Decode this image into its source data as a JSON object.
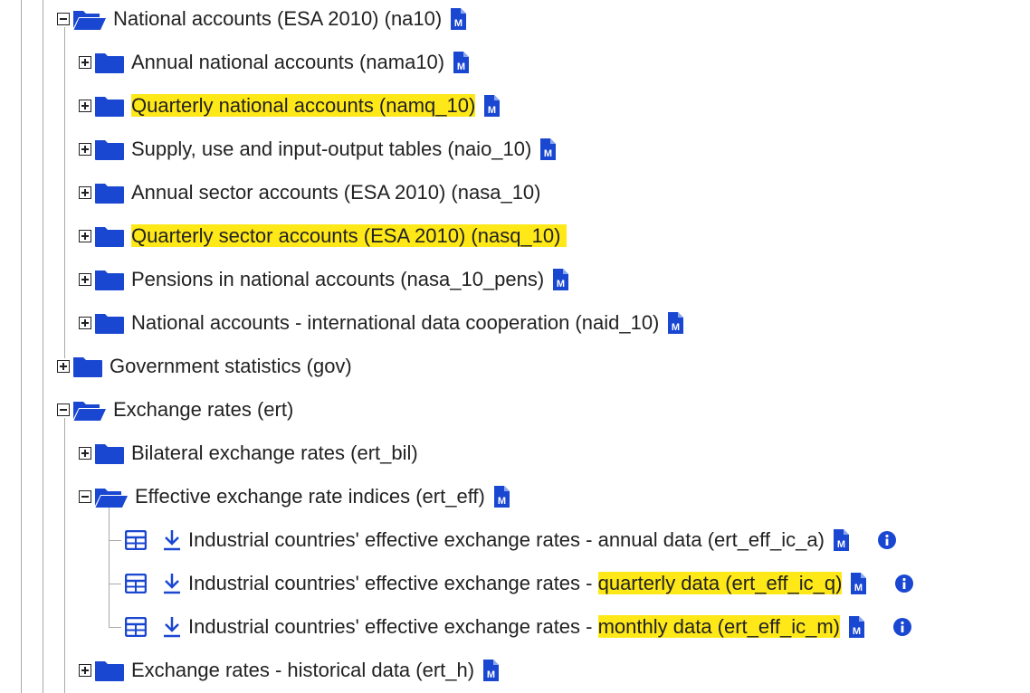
{
  "tree": {
    "nodes": [
      {
        "id": "na10",
        "prefix": "National accounts (ESA 2010) (na10)",
        "highlight": "",
        "suffix": "",
        "expanded": true,
        "meta": true
      },
      {
        "id": "nama10",
        "prefix": "Annual national accounts (nama10)",
        "highlight": "",
        "suffix": "",
        "expanded": false,
        "meta": true
      },
      {
        "id": "namq_10",
        "prefix": "",
        "highlight": "Quarterly national accounts (namq_10)",
        "suffix": "",
        "expanded": false,
        "meta": true
      },
      {
        "id": "naio_10",
        "prefix": "Supply, use and input-output tables (naio_10)",
        "highlight": "",
        "suffix": "",
        "expanded": false,
        "meta": true
      },
      {
        "id": "nasa_10",
        "prefix": "Annual sector accounts (ESA 2010) (nasa_10)",
        "highlight": "",
        "suffix": "",
        "expanded": false,
        "meta": false
      },
      {
        "id": "nasq_10",
        "prefix": "",
        "highlight": "Quarterly sector accounts (ESA 2010) (nasq_10) ",
        "suffix": "",
        "expanded": false,
        "meta": false
      },
      {
        "id": "nasa_10_pens",
        "prefix": "Pensions in national accounts (nasa_10_pens)",
        "highlight": "",
        "suffix": "",
        "expanded": false,
        "meta": true
      },
      {
        "id": "naid_10",
        "prefix": "National accounts - international data cooperation (naid_10)",
        "highlight": "",
        "suffix": "",
        "expanded": false,
        "meta": true
      },
      {
        "id": "gov",
        "prefix": "Government statistics (gov)",
        "highlight": "",
        "suffix": "",
        "expanded": false,
        "meta": false
      },
      {
        "id": "ert",
        "prefix": "Exchange rates (ert)",
        "highlight": "",
        "suffix": "",
        "expanded": true,
        "meta": false
      },
      {
        "id": "ert_bil",
        "prefix": "Bilateral exchange rates (ert_bil)",
        "highlight": "",
        "suffix": "",
        "expanded": false,
        "meta": false
      },
      {
        "id": "ert_eff",
        "prefix": "Effective exchange rate indices (ert_eff)",
        "highlight": "",
        "suffix": "",
        "expanded": true,
        "meta": true
      },
      {
        "id": "ert_eff_ic_a",
        "prefix": "Industrial countries' effective exchange rates - annual data (ert_eff_ic_a)",
        "highlight": "",
        "suffix": "",
        "meta": true,
        "info": true
      },
      {
        "id": "ert_eff_ic_q",
        "prefix": "Industrial countries' effective exchange rates - ",
        "highlight": "quarterly data (ert_eff_ic_q)",
        "suffix": "",
        "meta": true,
        "info": true
      },
      {
        "id": "ert_eff_ic_m",
        "prefix": "Industrial countries' effective exchange rates - ",
        "highlight": "monthly data (ert_eff_ic_m)",
        "suffix": "",
        "meta": true,
        "info": true
      },
      {
        "id": "ert_h",
        "prefix": "Exchange rates - historical data (ert_h)",
        "highlight": "",
        "suffix": "",
        "expanded": false,
        "meta": true
      }
    ]
  },
  "icons": {
    "folder": "folder-icon",
    "folder_open": "folder-open-icon",
    "metadata": "metadata-icon",
    "table": "table-icon",
    "download": "download-icon",
    "info": "info-icon"
  },
  "colors": {
    "accent": "#1a47d1",
    "highlight": "#ffe817",
    "text": "#222222",
    "tree_line": "#a8a8a8"
  }
}
